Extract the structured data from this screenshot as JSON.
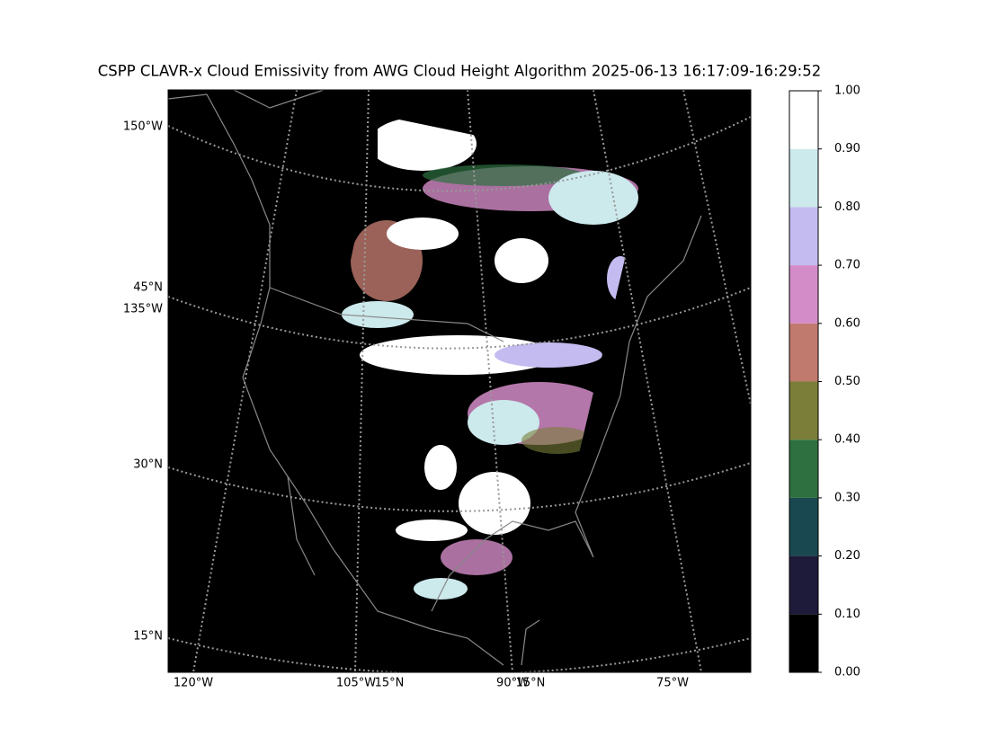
{
  "title": "CSPP CLAVR-x Cloud Emissivity from AWG Cloud Height Algorithm 2025-06-13 16:17:09-16:29:52",
  "map": {
    "left_labels": [
      "150°W",
      "45°N",
      "135°W",
      "30°N",
      "15°N"
    ],
    "bottom_labels": [
      "120°W",
      "105°W",
      "15°N",
      "90°W",
      "15°N",
      "75°W"
    ]
  },
  "colorbar": {
    "colors": [
      "#000000",
      "#1e1a3a",
      "#1a4850",
      "#2e7040",
      "#7a7e38",
      "#c07a6e",
      "#d48cc8",
      "#c4bcf0",
      "#cce9ec",
      "#ffffff"
    ],
    "ticks": [
      {
        "value": 0,
        "label": "0.00"
      },
      {
        "value": 0.1,
        "label": "0.10"
      },
      {
        "value": 0.2,
        "label": "0.20"
      },
      {
        "value": 0.3,
        "label": "0.30"
      },
      {
        "value": 0.4,
        "label": "0.40"
      },
      {
        "value": 0.5,
        "label": "0.50"
      },
      {
        "value": 0.6,
        "label": "0.60"
      },
      {
        "value": 0.7,
        "label": "0.70"
      },
      {
        "value": 0.8,
        "label": "0.80"
      },
      {
        "value": 0.9,
        "label": "0.90"
      },
      {
        "value": 1,
        "label": "1.00"
      }
    ]
  }
}
